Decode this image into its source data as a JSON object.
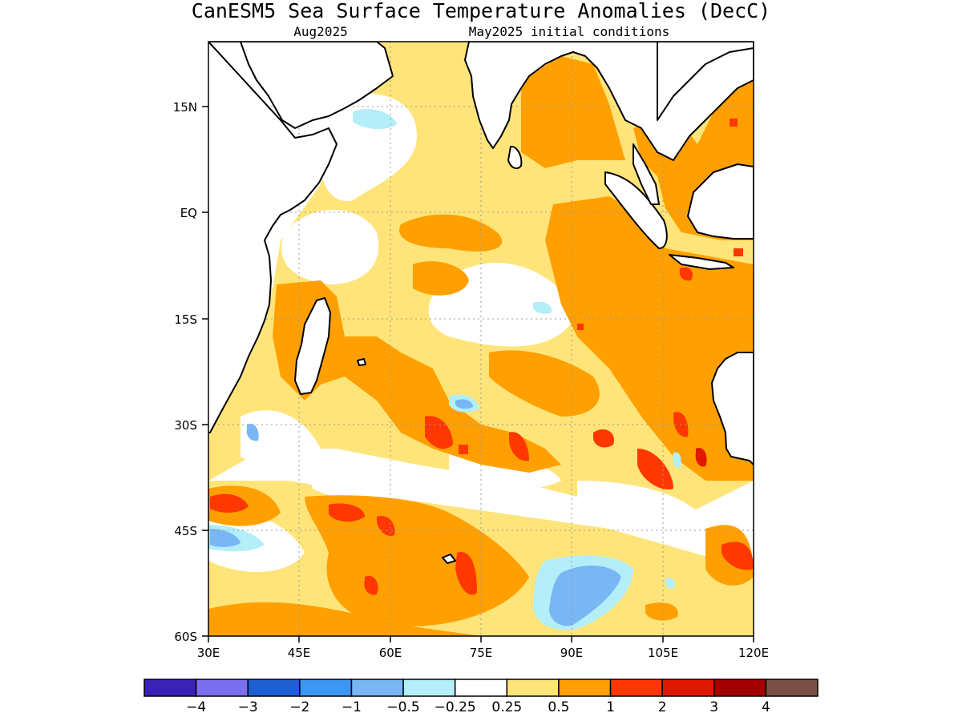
{
  "title": "CanESM5 Sea Surface Temperature Anomalies (DecC)",
  "subtitle_left": "Aug2025",
  "subtitle_right": "May2025 initial conditions",
  "map": {
    "lon_range": [
      30,
      120
    ],
    "lat_range": [
      -60,
      24
    ],
    "x_ticks": [
      "30E",
      "45E",
      "60E",
      "75E",
      "90E",
      "105E",
      "120E"
    ],
    "y_ticks": [
      "15N",
      "EQ",
      "15S",
      "30S",
      "45S",
      "60S"
    ],
    "grid": true,
    "land_color": "#ffffff",
    "coast_color": "#000000"
  },
  "legend": {
    "colors": [
      "#3a22b8",
      "#7b6ff0",
      "#1f5fd4",
      "#3c96f4",
      "#78b6f4",
      "#b3eef9",
      "#ffffff",
      "#ffe47a",
      "#ffa000",
      "#ff3700",
      "#e01800",
      "#a50000",
      "#7b4f45"
    ],
    "labels": [
      "−4",
      "−3",
      "−2",
      "−1",
      "−0.5",
      "−0.25",
      "0.25",
      "0.5",
      "1",
      "2",
      "3",
      "4"
    ]
  }
}
